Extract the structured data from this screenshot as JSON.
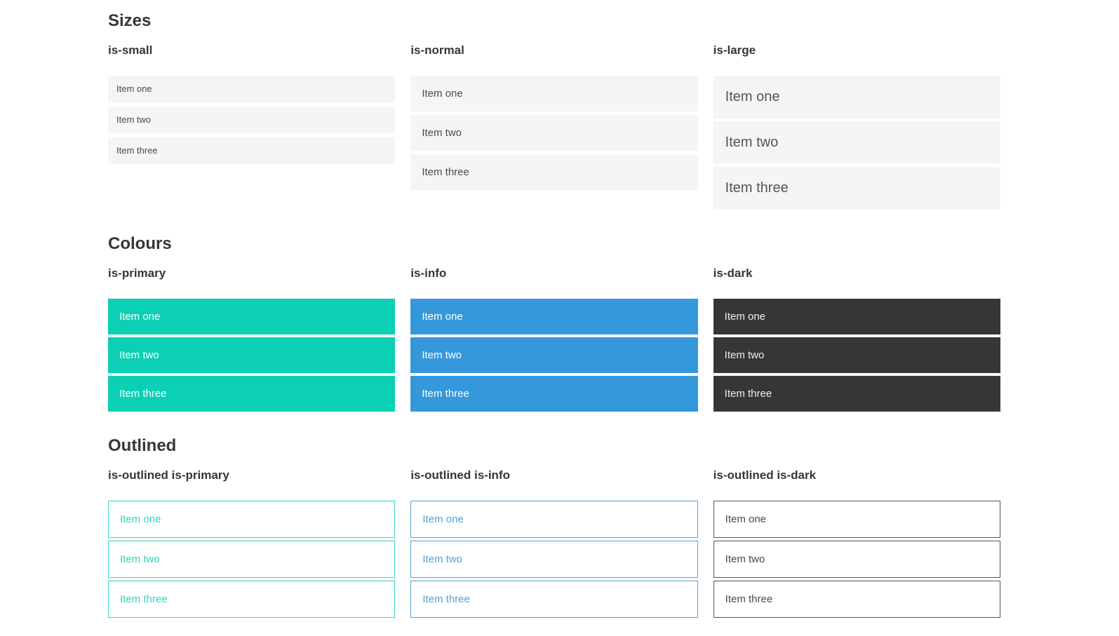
{
  "sections": [
    {
      "title": "Sizes",
      "groups": [
        {
          "heading": "is-small",
          "items": [
            "Item one",
            "Item two",
            "Item three"
          ]
        },
        {
          "heading": "is-normal",
          "items": [
            "Item one",
            "Item two",
            "Item three"
          ]
        },
        {
          "heading": "is-large",
          "items": [
            "Item one",
            "Item two",
            "Item three"
          ]
        }
      ]
    },
    {
      "title": "Colours",
      "groups": [
        {
          "heading": "is-primary",
          "items": [
            "Item one",
            "Item two",
            "Item three"
          ]
        },
        {
          "heading": "is-info",
          "items": [
            "Item one",
            "Item two",
            "Item three"
          ]
        },
        {
          "heading": "is-dark",
          "items": [
            "Item one",
            "Item two",
            "Item three"
          ]
        }
      ]
    },
    {
      "title": "Outlined",
      "groups": [
        {
          "heading": "is-outlined is-primary",
          "items": [
            "Item one",
            "Item two",
            "Item three"
          ]
        },
        {
          "heading": "is-outlined is-info",
          "items": [
            "Item one",
            "Item two",
            "Item three"
          ]
        },
        {
          "heading": "is-outlined is-dark",
          "items": [
            "Item one",
            "Item two",
            "Item three"
          ]
        }
      ]
    }
  ],
  "colors": {
    "primary": "#0cd0b5",
    "info": "#3598db",
    "dark": "#363636",
    "item_background": "#f5f5f5",
    "item_text": "#4a4a4a",
    "heading_text": "#363636",
    "outlined_primary": "#2fd8be",
    "outlined_info": "#4ea3de",
    "outlined_dark_border": "#575757"
  }
}
